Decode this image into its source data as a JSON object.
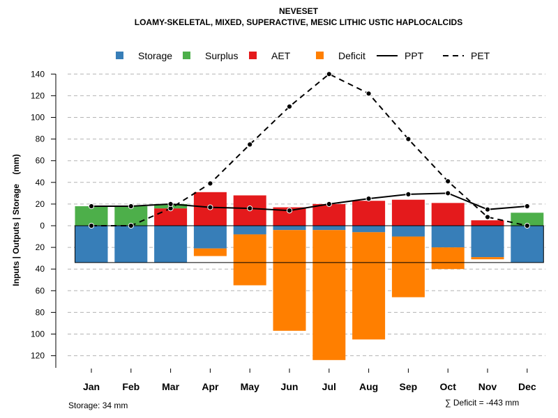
{
  "chart_data": {
    "type": "bar",
    "title": "NEVESET",
    "subtitle": "LOAMY-SKELETAL, MIXED, SUPERACTIVE, MESIC LITHIC USTIC HAPLOCALCIDS",
    "ylabel": "Inputs | Outputs | Storage    (mm)",
    "xlabel": "",
    "categories": [
      "Jan",
      "Feb",
      "Mar",
      "Apr",
      "May",
      "Jun",
      "Jul",
      "Aug",
      "Sep",
      "Oct",
      "Nov",
      "Dec"
    ],
    "ylim": [
      -130,
      140
    ],
    "yticks": [
      140,
      120,
      100,
      80,
      60,
      40,
      20,
      0,
      -20,
      -40,
      -60,
      -80,
      -100,
      -120
    ],
    "ytick_labels": [
      "140",
      "120",
      "100",
      "80",
      "60",
      "40",
      "20",
      "0",
      "20",
      "40",
      "60",
      "80",
      "100",
      "120"
    ],
    "grid": true,
    "legend_position": "top",
    "legend": [
      {
        "label": "Storage",
        "type": "box",
        "color": "#377EB8"
      },
      {
        "label": "Surplus",
        "type": "box",
        "color": "#4DAF4A"
      },
      {
        "label": "AET",
        "type": "box",
        "color": "#E41A1C"
      },
      {
        "label": "Deficit",
        "type": "box",
        "color": "#FF7F00"
      },
      {
        "label": "PPT",
        "type": "solid-line",
        "color": "#000000"
      },
      {
        "label": "PET",
        "type": "dashed-line",
        "color": "#000000"
      }
    ],
    "storage_capacity": 34,
    "series": [
      {
        "name": "Surplus",
        "color": "#4DAF4A",
        "values": [
          18,
          18,
          4,
          0,
          0,
          0,
          0,
          0,
          0,
          0,
          0,
          12
        ]
      },
      {
        "name": "AET",
        "color": "#E41A1C",
        "values": [
          0,
          0,
          16,
          31,
          28,
          17,
          20,
          23,
          24,
          21,
          5,
          0
        ]
      },
      {
        "name": "Storage",
        "color": "#377EB8",
        "values": [
          34,
          34,
          34,
          13,
          26,
          30,
          30,
          28,
          24,
          14,
          5,
          34
        ]
      },
      {
        "name": "Storage depletion",
        "color": "#FFFFFF",
        "values": [
          0,
          0,
          0,
          21,
          8,
          4,
          4,
          6,
          10,
          20,
          29,
          0
        ]
      },
      {
        "name": "Deficit",
        "color": "#FF7F00",
        "values": [
          0,
          0,
          0,
          7,
          47,
          93,
          120,
          99,
          56,
          20,
          2,
          0
        ]
      },
      {
        "name": "PPT",
        "color": "#000000",
        "values": [
          18,
          18,
          20,
          17,
          16,
          14,
          20,
          25,
          29,
          30,
          15,
          18
        ]
      },
      {
        "name": "PET",
        "color": "#000000",
        "values": [
          0,
          0,
          16,
          39,
          75,
          110,
          140,
          122,
          80,
          41,
          8,
          0
        ]
      }
    ],
    "annotations": {
      "storage_note": "Storage: 34 mm",
      "deficit_note": "∑ Deficit = -443 mm"
    }
  }
}
